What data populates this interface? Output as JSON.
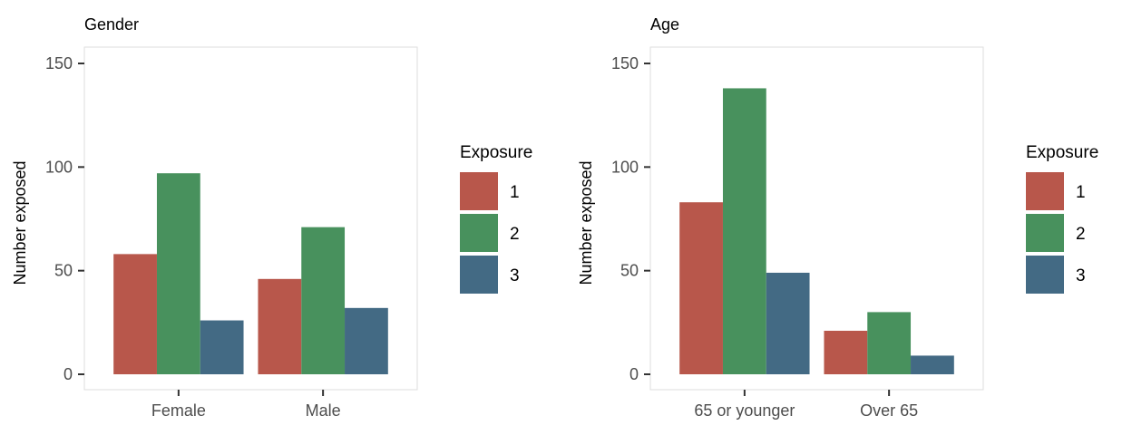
{
  "chart_data": [
    {
      "type": "bar",
      "title": "Gender",
      "xlabel": "",
      "ylabel": "Number exposed",
      "ylim": [
        0,
        150
      ],
      "yticks": [
        0,
        50,
        100,
        150
      ],
      "grid": false,
      "legend_position": "right",
      "legend_title": "Exposure",
      "categories": [
        "Female",
        "Male"
      ],
      "series": [
        {
          "name": "1",
          "color": "#b8574b",
          "values": [
            58,
            46
          ]
        },
        {
          "name": "2",
          "color": "#48915d",
          "values": [
            97,
            71
          ]
        },
        {
          "name": "3",
          "color": "#436a84",
          "values": [
            26,
            32
          ]
        }
      ]
    },
    {
      "type": "bar",
      "title": "Age",
      "xlabel": "",
      "ylabel": "Number exposed",
      "ylim": [
        0,
        150
      ],
      "yticks": [
        0,
        50,
        100,
        150
      ],
      "grid": false,
      "legend_position": "right",
      "legend_title": "Exposure",
      "categories": [
        "65 or younger",
        "Over 65"
      ],
      "series": [
        {
          "name": "1",
          "color": "#b8574b",
          "values": [
            83,
            21
          ]
        },
        {
          "name": "2",
          "color": "#48915d",
          "values": [
            138,
            30
          ]
        },
        {
          "name": "3",
          "color": "#436a84",
          "values": [
            49,
            9
          ]
        }
      ]
    }
  ]
}
